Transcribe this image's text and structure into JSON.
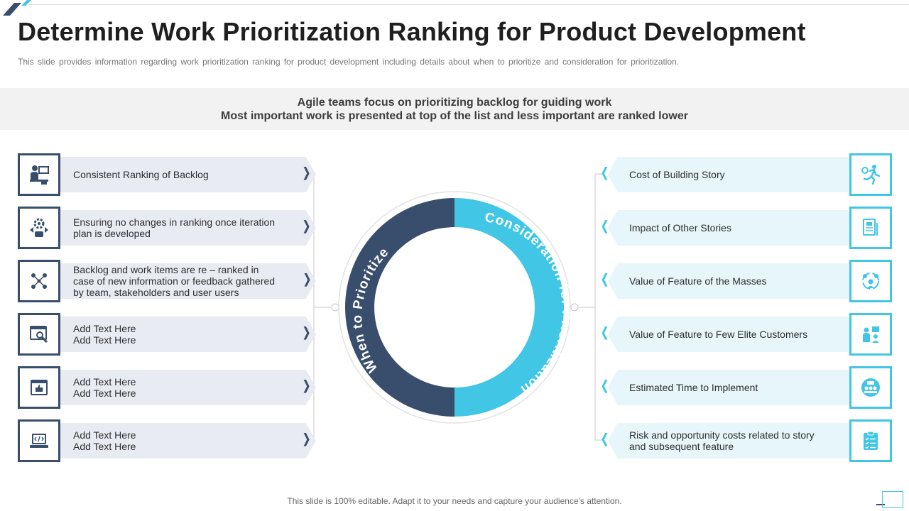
{
  "title": "Determine Work Prioritization Ranking for Product Development",
  "subtitle": "This slide provides information regarding work prioritization ranking for product development including details about when to prioritize and consideration for prioritization.",
  "banner": {
    "line1": "Agile teams focus on prioritizing backlog for guiding work",
    "line2": "Most important work is presented at top of the list and less important are ranked lower"
  },
  "ring": {
    "left_label": "When to Prioritize",
    "right_label": "Consideration for Prioritization",
    "left_color": "#394e6d",
    "right_color": "#41c6e6"
  },
  "left_items": [
    {
      "icon": "desk-worker-icon",
      "lines": [
        "Consistent Ranking of Backlog"
      ]
    },
    {
      "icon": "gear-growth-icon",
      "lines": [
        "Ensuring no changes in ranking once iteration",
        "plan is developed"
      ]
    },
    {
      "icon": "team-network-icon",
      "lines": [
        "Backlog and work items are re – ranked in",
        "case of new information or feedback gathered",
        "by team, stakeholders and user users"
      ]
    },
    {
      "icon": "browser-search-icon",
      "lines": [
        "Add Text Here",
        "Add Text Here"
      ]
    },
    {
      "icon": "thumbs-up-window-icon",
      "lines": [
        "Add Text Here",
        "Add Text Here"
      ]
    },
    {
      "icon": "laptop-code-icon",
      "lines": [
        "Add Text Here",
        "Add Text Here"
      ]
    }
  ],
  "right_items": [
    {
      "icon": "running-clock-icon",
      "lines": [
        "Cost of Building Story"
      ]
    },
    {
      "icon": "documents-icon",
      "lines": [
        "Impact of Other Stories"
      ]
    },
    {
      "icon": "team-circle-icon",
      "lines": [
        "Value of Feature of the Masses"
      ]
    },
    {
      "icon": "presenter-icon",
      "lines": [
        "Value of Feature to Few Elite Customers"
      ]
    },
    {
      "icon": "time-team-icon",
      "lines": [
        "Estimated Time to Implement"
      ]
    },
    {
      "icon": "clipboard-icon",
      "lines": [
        "Risk and opportunity costs related to story",
        "and subsequent feature"
      ]
    }
  ],
  "footer": "This slide is 100% editable. Adapt it to your needs and capture your audience's attention."
}
